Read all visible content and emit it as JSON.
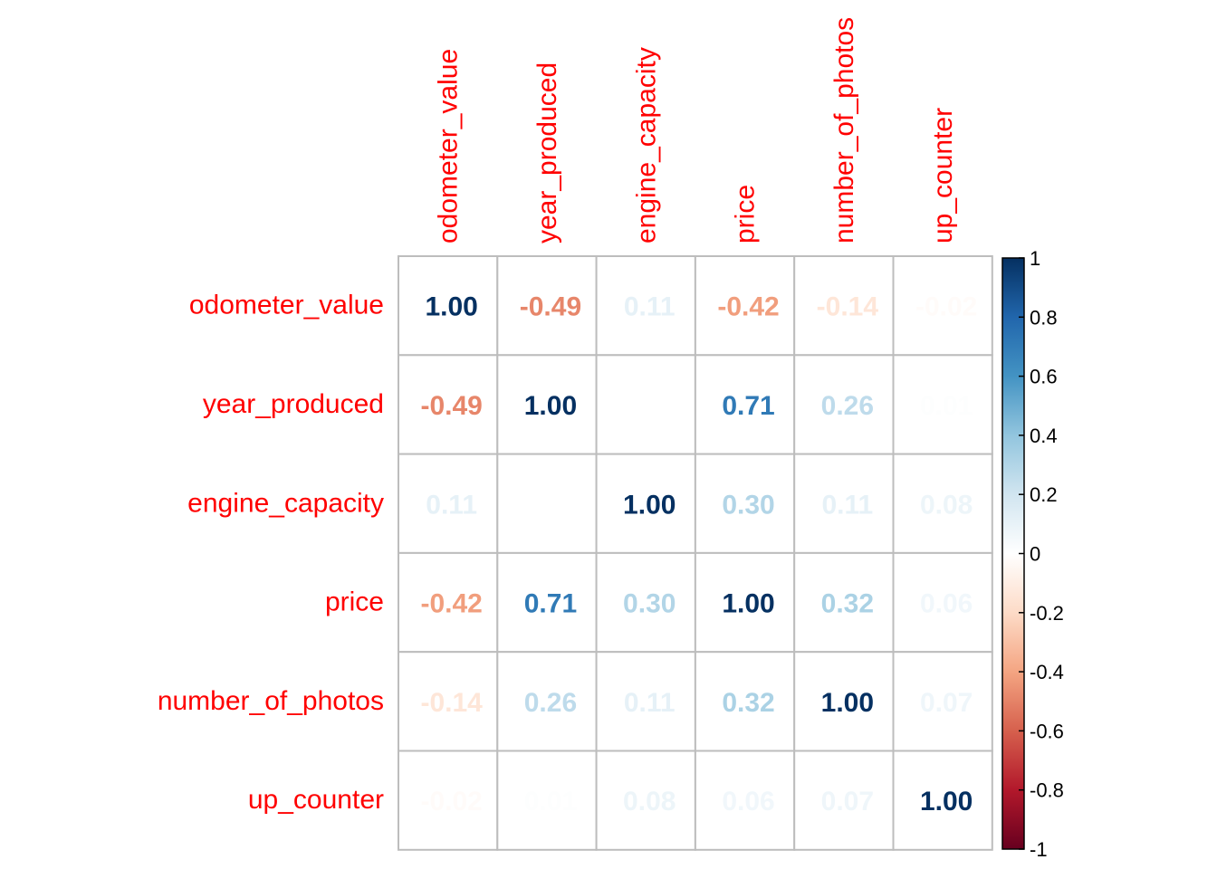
{
  "chart_data": {
    "type": "heatmap",
    "title": "",
    "variables": [
      "odometer_value",
      "year_produced",
      "engine_capacity",
      "price",
      "number_of_photos",
      "up_counter"
    ],
    "matrix": [
      [
        1.0,
        -0.49,
        0.11,
        -0.42,
        -0.14,
        -0.02
      ],
      [
        -0.49,
        1.0,
        0.0,
        0.71,
        0.26,
        0.01
      ],
      [
        0.11,
        0.0,
        1.0,
        0.3,
        0.11,
        0.08
      ],
      [
        -0.42,
        0.71,
        0.3,
        1.0,
        0.32,
        0.06
      ],
      [
        -0.14,
        0.26,
        0.11,
        0.32,
        1.0,
        0.07
      ],
      [
        -0.02,
        0.01,
        0.08,
        0.06,
        0.07,
        1.0
      ]
    ],
    "colorbar": {
      "range": [
        -1,
        1
      ],
      "ticks": [
        "1",
        "0.8",
        "0.6",
        "0.4",
        "0.2",
        "0",
        "-0.2",
        "-0.4",
        "-0.6",
        "-0.8",
        "-1"
      ],
      "colors": [
        "#67001f",
        "#b2182b",
        "#d6604d",
        "#f4a582",
        "#fddbc7",
        "#ffffff",
        "#d1e5f0",
        "#92c5de",
        "#4393c3",
        "#2166ac",
        "#053061"
      ]
    },
    "label_color": "#ff0000",
    "grid_color": "#bdbdbd"
  }
}
